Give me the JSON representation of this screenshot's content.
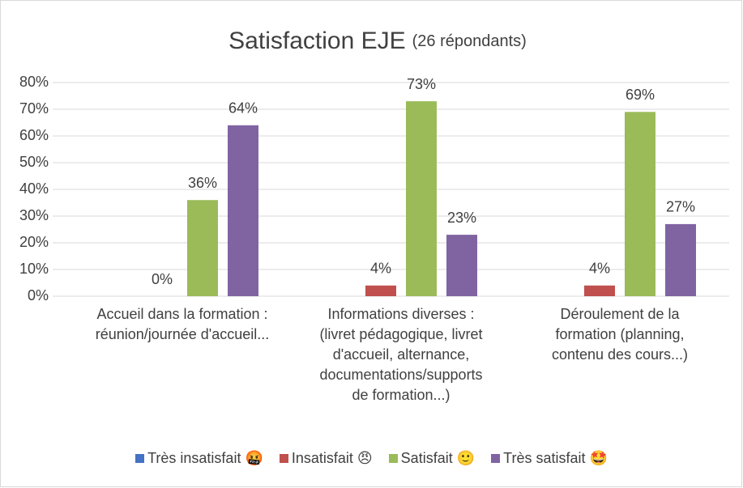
{
  "chart_data": {
    "type": "bar",
    "title": "Satisfaction EJE",
    "subtitle": "(26 répondants)",
    "categories": [
      "Accueil dans la formation :\nréunion/journée d'accueil...",
      "Informations diverses :\n(livret pédagogique, livret\nd'accueil, alternance,\ndocumentations/supports\nde formation...)",
      "Déroulement de la\nformation (planning,\ncontenu des cours...)"
    ],
    "series": [
      {
        "name": "Très insatisfait 🤬",
        "color": "#4472c4",
        "values": [
          0,
          0,
          0
        ],
        "value_labels": [
          null,
          null,
          null
        ]
      },
      {
        "name": "Insatisfait 😠",
        "color": "#c0504d",
        "values": [
          0,
          4,
          4
        ],
        "value_labels": [
          "0%",
          "4%",
          "4%"
        ]
      },
      {
        "name": "Satisfait 🙂",
        "color": "#9bbb59",
        "values": [
          36,
          73,
          69
        ],
        "value_labels": [
          "36%",
          "73%",
          "69%"
        ]
      },
      {
        "name": "Très satisfait 🤩",
        "color": "#8064a2",
        "values": [
          64,
          23,
          27
        ],
        "value_labels": [
          "64%",
          "23%",
          "27%"
        ]
      }
    ],
    "ylim": [
      0,
      80
    ],
    "yticks": [
      {
        "value": 0,
        "label": "0%"
      },
      {
        "value": 10,
        "label": "10%"
      },
      {
        "value": 20,
        "label": "20%"
      },
      {
        "value": 30,
        "label": "30%"
      },
      {
        "value": 40,
        "label": "40%"
      },
      {
        "value": 50,
        "label": "50%"
      },
      {
        "value": 60,
        "label": "60%"
      },
      {
        "value": 70,
        "label": "70%"
      },
      {
        "value": 80,
        "label": "80%"
      }
    ],
    "grid": true,
    "legend": "bottom"
  }
}
